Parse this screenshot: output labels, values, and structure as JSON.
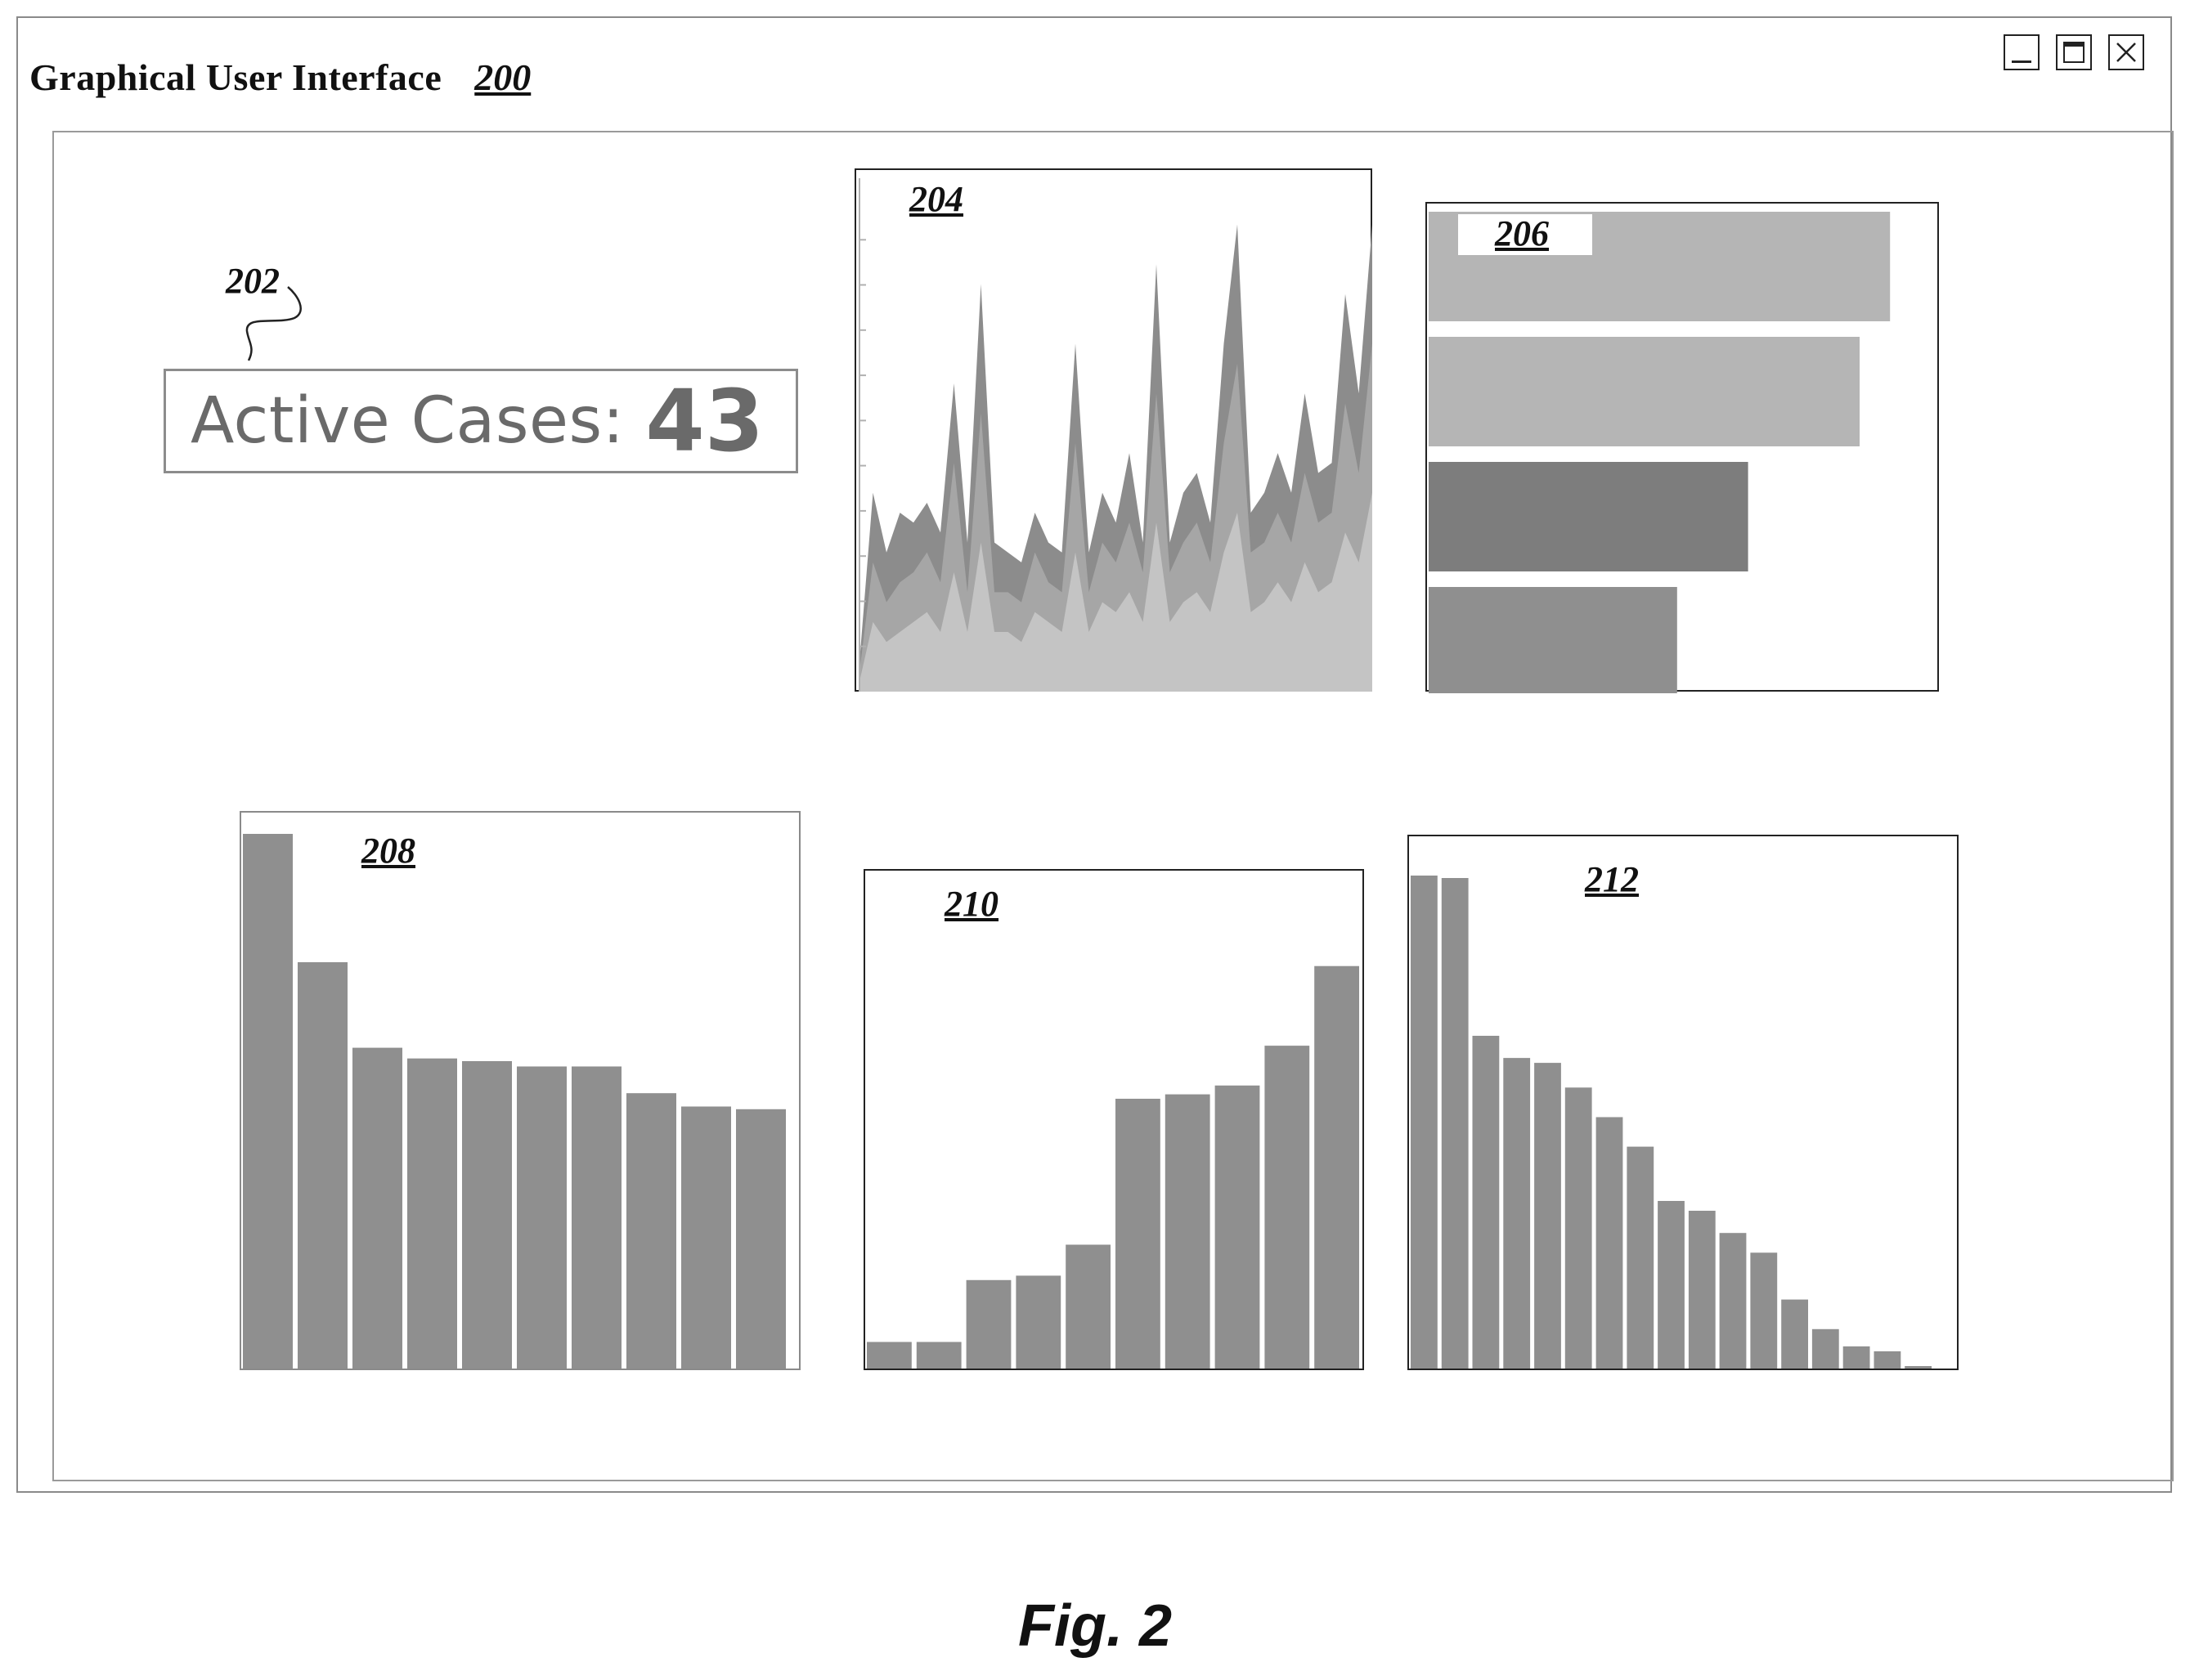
{
  "window": {
    "title": "Graphical User Interface",
    "ref": "200",
    "controls": [
      "minimize-icon",
      "maximize-icon",
      "close-icon"
    ]
  },
  "kpi": {
    "ref": "202",
    "label": "Active Cases:",
    "value": "43"
  },
  "panels": {
    "p204": "204",
    "p206": "206",
    "p208": "208",
    "p210": "210",
    "p212": "212"
  },
  "colors": {
    "bar": "#8f8f8f",
    "bar_dark": "#7d7d7d",
    "bar_light": "#b5b5b5",
    "area_dark": "#8c8c8c",
    "area_mid": "#a6a6a6",
    "area_light": "#c4c4c4"
  },
  "chart_data": [
    {
      "id": "204",
      "type": "area",
      "series": [
        {
          "values": [
            6,
            40,
            28,
            36,
            34,
            38,
            32,
            62,
            30,
            82,
            30,
            28,
            26,
            36,
            30,
            28,
            70,
            28,
            40,
            34,
            48,
            30,
            86,
            30,
            40,
            44,
            34,
            70,
            94,
            36,
            40,
            48,
            40,
            60,
            44,
            46,
            80,
            60,
            94
          ]
        },
        {
          "values": [
            4,
            26,
            18,
            22,
            24,
            28,
            22,
            46,
            20,
            56,
            20,
            20,
            18,
            28,
            22,
            20,
            50,
            20,
            30,
            26,
            34,
            24,
            60,
            24,
            30,
            34,
            26,
            50,
            66,
            28,
            30,
            36,
            30,
            44,
            34,
            36,
            58,
            44,
            70
          ]
        },
        {
          "values": [
            2,
            14,
            10,
            12,
            14,
            16,
            12,
            24,
            12,
            30,
            12,
            12,
            10,
            16,
            14,
            12,
            28,
            12,
            18,
            16,
            20,
            14,
            34,
            14,
            18,
            20,
            16,
            28,
            36,
            16,
            18,
            22,
            18,
            26,
            20,
            22,
            32,
            26,
            40
          ]
        }
      ],
      "ylim": [
        0,
        100
      ]
    },
    {
      "id": "206",
      "type": "bar",
      "orientation": "horizontal",
      "values": [
        91,
        85,
        63,
        49
      ],
      "xlim": [
        0,
        100
      ]
    },
    {
      "id": "208",
      "type": "bar",
      "values": [
        100,
        76,
        60,
        58,
        57.5,
        56.5,
        56.5,
        51.5,
        49,
        48.5
      ],
      "ylim": [
        0,
        100
      ]
    },
    {
      "id": "210",
      "type": "bar",
      "values": [
        6,
        6,
        20,
        21,
        28,
        61,
        62,
        64,
        73,
        91
      ],
      "ylim": [
        0,
        100
      ]
    },
    {
      "id": "212",
      "type": "bar",
      "values": [
        100,
        99.5,
        67.5,
        63,
        62,
        57,
        51,
        45,
        34,
        32,
        27.5,
        23.5,
        14,
        8,
        4.5,
        3.5,
        0.5
      ],
      "ylim": [
        0,
        100
      ]
    }
  ],
  "caption": "Fig. 2"
}
